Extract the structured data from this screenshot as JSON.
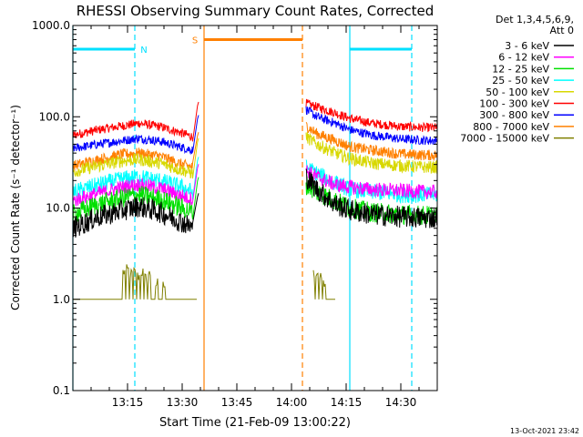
{
  "chart_data": {
    "type": "line",
    "title": "RHESSI Observing Summary Count Rates, Corrected",
    "xlabel": "Start Time (21-Feb-09 13:00:22)",
    "ylabel": "Corrected Count Rate (s⁻¹ detector⁻¹)",
    "yscale": "log",
    "ylim": [
      0.1,
      1000
    ],
    "xlim_minutes": [
      0,
      100
    ],
    "y_ticks": [
      {
        "value": 0.1,
        "label": "0.1"
      },
      {
        "value": 1,
        "label": "1.0"
      },
      {
        "value": 10,
        "label": "10.0"
      },
      {
        "value": 100,
        "label": "100.0"
      },
      {
        "value": 1000,
        "label": "1000.0"
      }
    ],
    "x_ticks": [
      {
        "minute": 15,
        "label": "13:15"
      },
      {
        "minute": 30,
        "label": "13:30"
      },
      {
        "minute": 45,
        "label": "13:45"
      },
      {
        "minute": 60,
        "label": "14:00"
      },
      {
        "minute": 75,
        "label": "14:15"
      },
      {
        "minute": 90,
        "label": "14:30"
      }
    ],
    "legend": {
      "placement": "right",
      "header": [
        "Det 1,3,4,5,6,9,",
        "Att 0"
      ],
      "entries": [
        {
          "label": "3 - 6 keV",
          "color": "#000000"
        },
        {
          "label": "6 - 12 keV",
          "color": "#ff00ff"
        },
        {
          "label": "12 - 25 keV",
          "color": "#00e000"
        },
        {
          "label": "25 - 50 keV",
          "color": "#00ffff"
        },
        {
          "label": "50 - 100 keV",
          "color": "#d8d800"
        },
        {
          "label": "100 - 300 keV",
          "color": "#ff0000"
        },
        {
          "label": "300 - 800 keV",
          "color": "#0000ff"
        },
        {
          "label": "800 - 7000 keV",
          "color": "#ff8000"
        },
        {
          "label": "7000 - 15000 keV",
          "color": "#808000"
        }
      ]
    },
    "segments": [
      [
        0,
        34.5
      ],
      [
        63.5,
        100
      ]
    ],
    "series": [
      {
        "color": "#ff0000",
        "before": [
          [
            0,
            63
          ],
          [
            7,
            72
          ],
          [
            14,
            80
          ],
          [
            18,
            85
          ],
          [
            24,
            78
          ],
          [
            30,
            66
          ],
          [
            33,
            60
          ]
        ],
        "after": [
          [
            64,
            140
          ],
          [
            67,
            128
          ],
          [
            72,
            110
          ],
          [
            76,
            96
          ],
          [
            82,
            85
          ],
          [
            90,
            78
          ],
          [
            97,
            76
          ]
        ],
        "noise": 0.05
      },
      {
        "color": "#0000ff",
        "before": [
          [
            0,
            45
          ],
          [
            7,
            50
          ],
          [
            14,
            55
          ],
          [
            18,
            58
          ],
          [
            24,
            54
          ],
          [
            30,
            46
          ],
          [
            33,
            43
          ]
        ],
        "after": [
          [
            64,
            120
          ],
          [
            67,
            100
          ],
          [
            72,
            85
          ],
          [
            76,
            72
          ],
          [
            82,
            63
          ],
          [
            90,
            57
          ],
          [
            97,
            55
          ]
        ],
        "noise": 0.05
      },
      {
        "color": "#ff8000",
        "before": [
          [
            0,
            29
          ],
          [
            7,
            34
          ],
          [
            14,
            39
          ],
          [
            18,
            40
          ],
          [
            24,
            37
          ],
          [
            30,
            30
          ],
          [
            33,
            28
          ]
        ],
        "after": [
          [
            64,
            80
          ],
          [
            67,
            65
          ],
          [
            72,
            55
          ],
          [
            76,
            47
          ],
          [
            82,
            43
          ],
          [
            90,
            39
          ],
          [
            97,
            38
          ]
        ],
        "noise": 0.06
      },
      {
        "color": "#d8d800",
        "before": [
          [
            0,
            25
          ],
          [
            7,
            29
          ],
          [
            14,
            33
          ],
          [
            18,
            34
          ],
          [
            24,
            31
          ],
          [
            30,
            26
          ],
          [
            33,
            24
          ]
        ],
        "after": [
          [
            64,
            60
          ],
          [
            67,
            50
          ],
          [
            72,
            40
          ],
          [
            76,
            35
          ],
          [
            82,
            31
          ],
          [
            90,
            29
          ],
          [
            97,
            28
          ]
        ],
        "noise": 0.07
      },
      {
        "color": "#00ffff",
        "before": [
          [
            0,
            15
          ],
          [
            7,
            18
          ],
          [
            14,
            21
          ],
          [
            18,
            22
          ],
          [
            24,
            20
          ],
          [
            30,
            17
          ],
          [
            33,
            15
          ]
        ],
        "after": [
          [
            64,
            28
          ],
          [
            67,
            24
          ],
          [
            72,
            19
          ],
          [
            76,
            16
          ],
          [
            82,
            15
          ],
          [
            90,
            14
          ],
          [
            97,
            14
          ]
        ],
        "noise": 0.09
      },
      {
        "color": "#ff00ff",
        "before": [
          [
            0,
            12
          ],
          [
            7,
            14.5
          ],
          [
            14,
            17
          ],
          [
            18,
            18
          ],
          [
            24,
            16.5
          ],
          [
            30,
            13.5
          ],
          [
            33,
            12.5
          ]
        ],
        "after": [
          [
            64,
            26
          ],
          [
            67,
            22
          ],
          [
            72,
            18
          ],
          [
            76,
            17
          ],
          [
            82,
            16
          ],
          [
            90,
            15.5
          ],
          [
            97,
            15
          ]
        ],
        "noise": 0.08
      },
      {
        "color": "#00e000",
        "before": [
          [
            0,
            8.5
          ],
          [
            7,
            11
          ],
          [
            14,
            13
          ],
          [
            18,
            14
          ],
          [
            24,
            12.5
          ],
          [
            30,
            10
          ],
          [
            33,
            9
          ]
        ],
        "after": [
          [
            64,
            18
          ],
          [
            67,
            15
          ],
          [
            72,
            12
          ],
          [
            76,
            10
          ],
          [
            82,
            9
          ],
          [
            90,
            8.5
          ],
          [
            97,
            8.3
          ]
        ],
        "noise": 0.11
      },
      {
        "color": "#000000",
        "before": [
          [
            0,
            6
          ],
          [
            7,
            8
          ],
          [
            14,
            9.5
          ],
          [
            18,
            10.5
          ],
          [
            24,
            9
          ],
          [
            30,
            7
          ],
          [
            33,
            6
          ]
        ],
        "after": [
          [
            64,
            22
          ],
          [
            67,
            16
          ],
          [
            72,
            11
          ],
          [
            76,
            9.5
          ],
          [
            82,
            8.5
          ],
          [
            90,
            8
          ],
          [
            97,
            7.8
          ]
        ],
        "noise": 0.12
      }
    ],
    "background_counts": {
      "color": "#808000",
      "baseline": 1.0,
      "before_spikes": [
        [
          14,
          2.0
        ],
        [
          15,
          2.1
        ],
        [
          16,
          1.9
        ],
        [
          17,
          2.0
        ],
        [
          18,
          1.8
        ],
        [
          19,
          2.0
        ],
        [
          20,
          1.7
        ],
        [
          21,
          1.9
        ],
        [
          23,
          1.5
        ],
        [
          25,
          1.4
        ]
      ],
      "after_spikes": [
        [
          65,
          2.0
        ],
        [
          66,
          1.9
        ],
        [
          67,
          2.0
        ],
        [
          68,
          1.7
        ],
        [
          69,
          1.5
        ]
      ]
    },
    "flag_bars": [
      {
        "label": "N",
        "color": "#00e0ff",
        "start": 0,
        "end": 17,
        "level": 550
      },
      {
        "label": "",
        "color": "#00e0ff",
        "start": 76,
        "end": 93,
        "level": 550
      },
      {
        "label": "S",
        "color": "#ff8000",
        "start": 36,
        "end": 63,
        "level": 700
      }
    ],
    "markers": [
      {
        "color": "#00e0ff",
        "minute": 0,
        "style": "solid"
      },
      {
        "color": "#00e0ff",
        "minute": 17,
        "style": "dashed"
      },
      {
        "color": "#00e0ff",
        "minute": 76,
        "style": "solid"
      },
      {
        "color": "#00e0ff",
        "minute": 93,
        "style": "dashed"
      },
      {
        "color": "#ff8000",
        "minute": 36,
        "style": "solid"
      },
      {
        "color": "#ff8000",
        "minute": 63,
        "style": "dashed"
      }
    ]
  },
  "footer": {
    "generated": "13-Oct-2021 23:42"
  }
}
